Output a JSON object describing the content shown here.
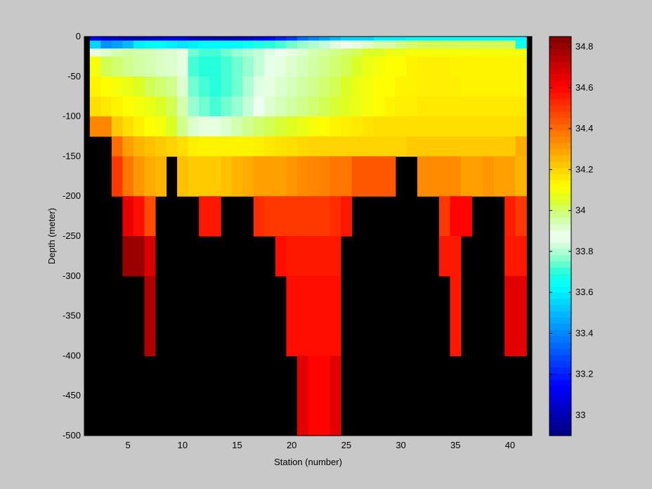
{
  "chart_data": {
    "type": "heatmap",
    "title": "",
    "xlabel": "Station (number)",
    "ylabel": "Depth (meter)",
    "xlim": [
      1,
      42
    ],
    "ylim": [
      -500,
      0
    ],
    "xticks": [
      5,
      10,
      15,
      20,
      25,
      30,
      35,
      40
    ],
    "yticks": [
      0,
      -50,
      -100,
      -150,
      -200,
      -250,
      -300,
      -350,
      -400,
      -450,
      -500
    ],
    "colorbar": {
      "colormap": "jet",
      "clim": [
        32.9,
        34.85
      ],
      "ticks": [
        33,
        33.2,
        33.4,
        33.6,
        33.8,
        34,
        34.2,
        34.4,
        34.6,
        34.8
      ],
      "ticklabels": [
        "33",
        "33.2",
        "33.4",
        "33.6",
        "33.8",
        "34",
        "34.2",
        "34.4",
        "34.6",
        "34.8"
      ]
    },
    "nodata_color": "#000000",
    "grid": false,
    "layers": [
      {
        "depth_top": 0,
        "depth_bottom": -5,
        "stations": [
          2,
          3,
          4,
          5,
          6,
          7,
          8,
          9,
          10,
          11,
          12,
          13,
          14,
          15,
          16,
          17,
          18,
          19,
          20,
          21,
          22,
          23,
          24,
          25,
          26,
          27,
          28,
          29,
          30,
          31,
          32,
          33,
          34,
          35,
          36,
          37,
          38,
          39,
          40,
          41
        ],
        "values": [
          33.12,
          33.08,
          33.05,
          33.02,
          33.02,
          33.05,
          33.08,
          33.1,
          33.1,
          33.05,
          33.02,
          33.0,
          33.0,
          33.02,
          33.05,
          33.1,
          33.15,
          33.2,
          33.25,
          33.35,
          33.4,
          33.45,
          33.5,
          33.55,
          33.55,
          33.55,
          33.6,
          33.6,
          33.6,
          33.62,
          33.62,
          33.62,
          33.62,
          33.62,
          33.62,
          33.62,
          33.62,
          33.62,
          33.62,
          33.62
        ]
      },
      {
        "depth_top": -5,
        "depth_bottom": -15,
        "stations": [
          2,
          3,
          4,
          5,
          6,
          7,
          8,
          9,
          10,
          11,
          12,
          13,
          14,
          15,
          16,
          17,
          18,
          19,
          20,
          21,
          22,
          23,
          24,
          25,
          26,
          27,
          28,
          29,
          30,
          31,
          32,
          33,
          34,
          35,
          36,
          37,
          38,
          39,
          40,
          41
        ],
        "values": [
          33.55,
          33.42,
          33.45,
          33.5,
          33.6,
          33.62,
          33.62,
          33.6,
          33.58,
          33.6,
          33.62,
          33.62,
          33.62,
          33.62,
          33.65,
          33.68,
          33.7,
          33.72,
          33.75,
          33.78,
          33.8,
          33.82,
          33.85,
          33.88,
          33.9,
          33.92,
          33.95,
          33.95,
          33.98,
          34.0,
          34.02,
          34.02,
          34.02,
          34.02,
          34.02,
          34.02,
          34.02,
          34.02,
          34.02,
          33.65
        ]
      },
      {
        "depth_top": -15,
        "depth_bottom": -25,
        "stations": [
          2,
          3,
          4,
          5,
          6,
          7,
          8,
          9,
          10,
          11,
          12,
          13,
          14,
          15,
          16,
          17,
          18,
          19,
          20,
          21,
          22,
          23,
          24,
          25,
          26,
          27,
          28,
          29,
          30,
          31,
          32,
          33,
          34,
          35,
          36,
          37,
          38,
          39,
          40,
          41
        ],
        "values": [
          33.9,
          33.92,
          33.95,
          33.96,
          33.95,
          33.95,
          33.93,
          33.92,
          33.9,
          33.75,
          33.72,
          33.72,
          33.75,
          33.78,
          33.8,
          33.82,
          33.85,
          33.88,
          33.9,
          33.92,
          33.95,
          33.96,
          33.98,
          34.0,
          34.02,
          34.05,
          34.05,
          34.08,
          34.08,
          34.1,
          34.1,
          34.1,
          34.1,
          34.1,
          34.1,
          34.1,
          34.1,
          34.1,
          34.1,
          34.1
        ]
      },
      {
        "depth_top": -25,
        "depth_bottom": -50,
        "stations": [
          2,
          3,
          4,
          5,
          6,
          7,
          8,
          9,
          10,
          11,
          12,
          13,
          14,
          15,
          16,
          17,
          18,
          19,
          20,
          21,
          22,
          23,
          24,
          25,
          26,
          27,
          28,
          29,
          30,
          31,
          32,
          33,
          34,
          35,
          36,
          37,
          38,
          39,
          40,
          41
        ],
        "values": [
          34.1,
          34.02,
          34.0,
          33.98,
          33.96,
          33.95,
          33.93,
          33.92,
          33.9,
          33.72,
          33.7,
          33.7,
          33.72,
          33.75,
          33.78,
          33.82,
          33.86,
          33.9,
          33.92,
          33.94,
          33.96,
          33.98,
          34.0,
          34.02,
          34.05,
          34.08,
          34.1,
          34.12,
          34.12,
          34.14,
          34.15,
          34.15,
          34.15,
          34.14,
          34.14,
          34.14,
          34.14,
          34.14,
          34.14,
          34.14
        ]
      },
      {
        "depth_top": -50,
        "depth_bottom": -75,
        "stations": [
          2,
          3,
          4,
          5,
          6,
          7,
          8,
          9,
          10,
          11,
          12,
          13,
          14,
          15,
          16,
          17,
          18,
          19,
          20,
          21,
          22,
          23,
          24,
          25,
          26,
          27,
          28,
          29,
          30,
          31,
          32,
          33,
          34,
          35,
          36,
          37,
          38,
          39,
          40,
          41
        ],
        "values": [
          34.14,
          34.12,
          34.1,
          34.08,
          34.05,
          34.02,
          34.0,
          33.98,
          33.92,
          33.75,
          33.72,
          33.7,
          33.72,
          33.75,
          33.8,
          33.85,
          33.9,
          33.92,
          33.94,
          33.96,
          33.98,
          34.0,
          34.02,
          34.05,
          34.08,
          34.1,
          34.12,
          34.12,
          34.14,
          34.14,
          34.15,
          34.15,
          34.15,
          34.15,
          34.14,
          34.14,
          34.14,
          34.14,
          34.14,
          34.14
        ]
      },
      {
        "depth_top": -75,
        "depth_bottom": -100,
        "stations": [
          2,
          3,
          4,
          5,
          6,
          7,
          8,
          9,
          10,
          11,
          12,
          13,
          14,
          15,
          16,
          17,
          18,
          19,
          20,
          21,
          22,
          23,
          24,
          25,
          26,
          27,
          28,
          29,
          30,
          31,
          32,
          33,
          34,
          35,
          36,
          37,
          38,
          39,
          40,
          41
        ],
        "values": [
          34.18,
          34.16,
          34.14,
          34.12,
          34.1,
          34.08,
          34.05,
          34.02,
          33.95,
          33.78,
          33.75,
          33.72,
          33.75,
          33.78,
          33.82,
          33.88,
          33.92,
          33.94,
          33.96,
          33.98,
          34.0,
          34.02,
          34.04,
          34.06,
          34.08,
          34.1,
          34.12,
          34.14,
          34.15,
          34.15,
          34.16,
          34.16,
          34.16,
          34.16,
          34.16,
          34.16,
          34.16,
          34.16,
          34.16,
          34.16
        ]
      },
      {
        "depth_top": -100,
        "depth_bottom": -125,
        "stations": [
          2,
          3,
          4,
          5,
          6,
          7,
          8,
          9,
          10,
          11,
          12,
          13,
          14,
          15,
          16,
          17,
          18,
          19,
          20,
          21,
          22,
          23,
          24,
          25,
          26,
          27,
          28,
          29,
          30,
          31,
          32,
          33,
          34,
          35,
          36,
          37,
          38,
          39,
          40,
          41
        ],
        "values": [
          34.35,
          34.35,
          34.22,
          34.18,
          34.15,
          34.12,
          34.1,
          34.05,
          33.98,
          33.92,
          33.9,
          33.9,
          33.92,
          33.95,
          33.98,
          34.0,
          34.02,
          34.04,
          34.06,
          34.08,
          34.1,
          34.12,
          34.14,
          34.15,
          34.16,
          34.17,
          34.18,
          34.18,
          34.18,
          34.18,
          34.18,
          34.18,
          34.18,
          34.18,
          34.18,
          34.18,
          34.18,
          34.18,
          34.18,
          34.18
        ]
      },
      {
        "depth_top": -125,
        "depth_bottom": -150,
        "stations": [
          4,
          5,
          6,
          7,
          8,
          9,
          10,
          11,
          12,
          13,
          14,
          15,
          16,
          17,
          18,
          19,
          20,
          21,
          22,
          23,
          24,
          25,
          26,
          27,
          28,
          29,
          30,
          31,
          32,
          33,
          34,
          35,
          36,
          37,
          38,
          39,
          40,
          41
        ],
        "values": [
          34.4,
          34.3,
          34.26,
          34.24,
          34.22,
          34.2,
          34.18,
          34.15,
          34.14,
          34.14,
          34.14,
          34.14,
          34.14,
          34.15,
          34.16,
          34.17,
          34.18,
          34.19,
          34.2,
          34.2,
          34.2,
          34.2,
          34.2,
          34.2,
          34.2,
          34.2,
          34.2,
          34.22,
          34.22,
          34.22,
          34.22,
          34.22,
          34.22,
          34.22,
          34.22,
          34.22,
          34.22,
          34.28
        ]
      },
      {
        "depth_top": -150,
        "depth_bottom": -200,
        "stations": [
          4,
          5,
          6,
          7,
          8,
          10,
          11,
          12,
          13,
          14,
          15,
          16,
          17,
          18,
          19,
          20,
          21,
          22,
          23,
          24,
          25,
          26,
          27,
          28,
          29,
          32,
          33,
          34,
          35,
          36,
          37,
          38,
          39,
          40,
          41
        ],
        "values": [
          34.5,
          34.38,
          34.32,
          34.28,
          34.26,
          34.24,
          34.22,
          34.22,
          34.22,
          34.24,
          34.26,
          34.28,
          34.3,
          34.3,
          34.3,
          34.32,
          34.34,
          34.35,
          34.36,
          34.38,
          34.38,
          34.44,
          34.44,
          34.44,
          34.44,
          34.34,
          34.34,
          34.34,
          34.34,
          34.3,
          34.3,
          34.32,
          34.3,
          34.3,
          34.26
        ]
      },
      {
        "depth_top": -200,
        "depth_bottom": -250,
        "stations": [
          5,
          6,
          7,
          12,
          13,
          17,
          18,
          19,
          20,
          21,
          22,
          23,
          24,
          25,
          34,
          35,
          36,
          40,
          41
        ],
        "values": [
          34.65,
          34.58,
          34.46,
          34.56,
          34.56,
          34.52,
          34.5,
          34.5,
          34.5,
          34.5,
          34.5,
          34.5,
          34.52,
          34.56,
          34.5,
          34.6,
          34.6,
          34.55,
          34.5
        ]
      },
      {
        "depth_top": -250,
        "depth_bottom": -300,
        "stations": [
          5,
          6,
          7,
          19,
          20,
          21,
          22,
          23,
          24,
          34,
          35,
          40,
          41
        ],
        "values": [
          34.8,
          34.8,
          34.68,
          34.58,
          34.56,
          34.56,
          34.56,
          34.56,
          34.56,
          34.56,
          34.56,
          34.56,
          34.56
        ]
      },
      {
        "depth_top": -300,
        "depth_bottom": -400,
        "stations": [
          7,
          20,
          21,
          22,
          23,
          24,
          35,
          40,
          41
        ],
        "values": [
          34.76,
          34.58,
          34.58,
          34.58,
          34.58,
          34.58,
          34.56,
          34.66,
          34.66
        ]
      },
      {
        "depth_top": -400,
        "depth_bottom": -500,
        "stations": [
          21,
          22,
          23,
          24
        ],
        "values": [
          34.66,
          34.6,
          34.6,
          34.66
        ]
      }
    ]
  }
}
